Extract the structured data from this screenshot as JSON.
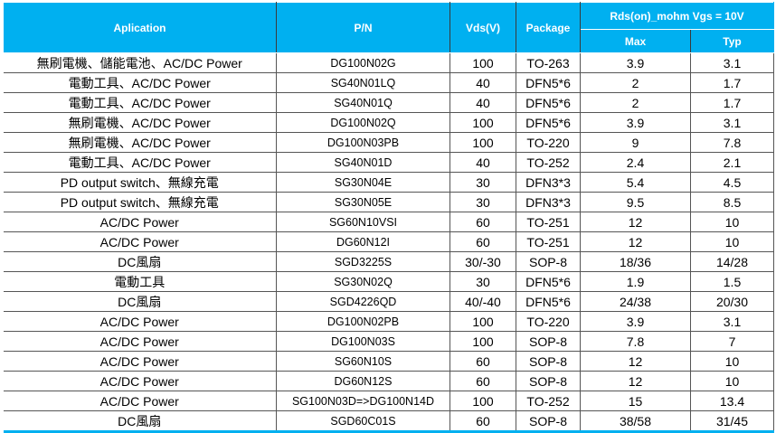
{
  "header": {
    "application": "Aplication",
    "pn": "P/N",
    "vds": "Vds(V)",
    "package": "Package",
    "rds_group": "Rds(on)_mohm  Vgs = 10V",
    "max": "Max",
    "typ": "Typ"
  },
  "header_color": "#00b0f0",
  "rows": [
    [
      "無刷電機、儲能電池、AC/DC Power",
      "DG100N02G",
      "100",
      "TO-263",
      "3.9",
      "3.1"
    ],
    [
      "電動工具、AC/DC Power",
      "SG40N01LQ",
      "40",
      "DFN5*6",
      "2",
      "1.7"
    ],
    [
      "電動工具、AC/DC Power",
      "SG40N01Q",
      "40",
      "DFN5*6",
      "2",
      "1.7"
    ],
    [
      "無刷電機、AC/DC Power",
      "DG100N02Q",
      "100",
      "DFN5*6",
      "3.9",
      "3.1"
    ],
    [
      "無刷電機、AC/DC Power",
      "DG100N03PB",
      "100",
      "TO-220",
      "9",
      "7.8"
    ],
    [
      "電動工具、AC/DC Power",
      "SG40N01D",
      "40",
      "TO-252",
      "2.4",
      "2.1"
    ],
    [
      "PD output switch、無線充電",
      "SG30N04E",
      "30",
      "DFN3*3",
      "5.4",
      "4.5"
    ],
    [
      "PD output switch、無線充電",
      "SG30N05E",
      "30",
      "DFN3*3",
      "9.5",
      "8.5"
    ],
    [
      "AC/DC Power",
      "SG60N10VSI",
      "60",
      "TO-251",
      "12",
      "10"
    ],
    [
      "AC/DC Power",
      "DG60N12I",
      "60",
      "TO-251",
      "12",
      "10"
    ],
    [
      "DC風扇",
      "SGD3225S",
      "30/-30",
      "SOP-8",
      "18/36",
      "14/28"
    ],
    [
      "電動工具",
      "SG30N02Q",
      "30",
      "DFN5*6",
      "1.9",
      "1.5"
    ],
    [
      "DC風扇",
      "SGD4226QD",
      "40/-40",
      "DFN5*6",
      "24/38",
      "20/30"
    ],
    [
      "AC/DC Power",
      "DG100N02PB",
      "100",
      "TO-220",
      "3.9",
      "3.1"
    ],
    [
      "AC/DC Power",
      "DG100N03S",
      "100",
      "SOP-8",
      "7.8",
      "7"
    ],
    [
      "AC/DC Power",
      "SG60N10S",
      "60",
      "SOP-8",
      "12",
      "10"
    ],
    [
      "AC/DC Power",
      "DG60N12S",
      "60",
      "SOP-8",
      "12",
      "10"
    ],
    [
      "AC/DC Power",
      "SG100N03D=>DG100N14D",
      "100",
      "TO-252",
      "15",
      "13.4"
    ],
    [
      "DC風扇",
      "SGD60C01S",
      "60",
      "SOP-8",
      "38/58",
      "31/45"
    ]
  ]
}
